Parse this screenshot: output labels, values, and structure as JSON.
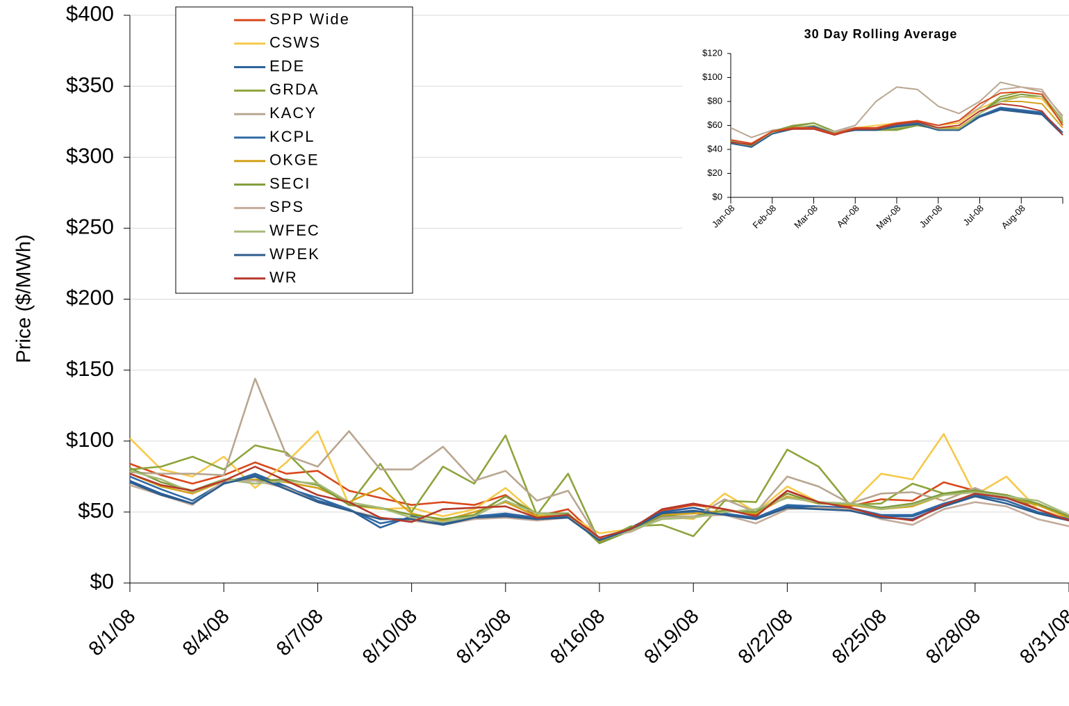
{
  "chart_data": [
    {
      "type": "line",
      "y_label": "Price ($/MWh)",
      "categories": [
        "8/1/08",
        null,
        null,
        "8/4/08",
        null,
        null,
        "8/7/08",
        null,
        null,
        "8/10/08",
        null,
        null,
        "8/13/08",
        null,
        null,
        "8/16/08",
        null,
        null,
        "8/19/08",
        null,
        null,
        "8/22/08",
        null,
        null,
        "8/25/08",
        null,
        null,
        "8/28/08",
        null,
        null,
        "8/31/08"
      ],
      "ylim": [
        0,
        400
      ],
      "yticks": [
        {
          "value": 0,
          "label": "$0"
        },
        {
          "value": 50,
          "label": "$50"
        },
        {
          "value": 100,
          "label": "$100"
        },
        {
          "value": 150,
          "label": "$150"
        },
        {
          "value": 200,
          "label": "$200"
        },
        {
          "value": 250,
          "label": "$250"
        },
        {
          "value": 300,
          "label": "$300"
        },
        {
          "value": 350,
          "label": "$350"
        },
        {
          "value": 400,
          "label": "$400"
        }
      ],
      "grid": true,
      "legend": "upper-left",
      "series": [
        {
          "name": "SPP Wide",
          "color": "#d9481c",
          "values": [
            84,
            76,
            70,
            76,
            85,
            77,
            79,
            65,
            60,
            55,
            57,
            55,
            62,
            47,
            52,
            31,
            38,
            51,
            55,
            52,
            48,
            65,
            57,
            54,
            59,
            58,
            71,
            65,
            62,
            52,
            45
          ]
        },
        {
          "name": "CSWS",
          "color": "#f6c94a",
          "values": [
            102,
            80,
            75,
            89,
            67,
            85,
            107,
            55,
            52,
            53,
            47,
            52,
            67,
            48,
            48,
            35,
            38,
            47,
            45,
            63,
            50,
            68,
            57,
            55,
            77,
            73,
            105,
            62,
            75,
            52,
            45
          ]
        },
        {
          "name": "EDE",
          "color": "#2a5f9c",
          "values": [
            72,
            63,
            56,
            70,
            77,
            68,
            58,
            52,
            39,
            47,
            42,
            46,
            48,
            46,
            46,
            30,
            39,
            50,
            53,
            48,
            45,
            54,
            53,
            52,
            47,
            47,
            55,
            62,
            58,
            50,
            45
          ]
        },
        {
          "name": "GRDA",
          "color": "#8ea43c",
          "values": [
            80,
            82,
            89,
            80,
            97,
            92,
            70,
            55,
            84,
            50,
            82,
            70,
            104,
            48,
            77,
            29,
            40,
            41,
            33,
            58,
            57,
            94,
            82,
            55,
            56,
            70,
            63,
            66,
            60,
            55,
            46
          ]
        },
        {
          "name": "KACY",
          "color": "#b9a690",
          "values": [
            78,
            77,
            77,
            76,
            144,
            90,
            82,
            107,
            80,
            80,
            96,
            72,
            79,
            58,
            65,
            30,
            37,
            48,
            46,
            59,
            50,
            75,
            68,
            56,
            63,
            64,
            58,
            67,
            58,
            50,
            44
          ]
        },
        {
          "name": "KCPL",
          "color": "#2f6aa5",
          "values": [
            75,
            66,
            58,
            71,
            76,
            67,
            60,
            52,
            42,
            46,
            43,
            47,
            49,
            46,
            47,
            30,
            38,
            48,
            50,
            49,
            46,
            55,
            54,
            53,
            48,
            48,
            56,
            62,
            58,
            50,
            45
          ]
        },
        {
          "name": "OKGE",
          "color": "#d4a21a",
          "values": [
            77,
            68,
            63,
            72,
            73,
            71,
            67,
            57,
            67,
            49,
            44,
            50,
            57,
            47,
            48,
            29,
            38,
            48,
            49,
            51,
            49,
            61,
            56,
            55,
            52,
            54,
            62,
            64,
            62,
            55,
            46
          ]
        },
        {
          "name": "SECI",
          "color": "#7f9b3a",
          "values": [
            81,
            71,
            65,
            73,
            72,
            73,
            69,
            55,
            53,
            48,
            45,
            48,
            61,
            49,
            49,
            28,
            37,
            47,
            47,
            51,
            50,
            63,
            56,
            56,
            53,
            56,
            63,
            65,
            62,
            56,
            47
          ]
        },
        {
          "name": "SPS",
          "color": "#c3ab9b",
          "values": [
            69,
            62,
            55,
            72,
            72,
            67,
            57,
            51,
            46,
            44,
            41,
            45,
            46,
            44,
            46,
            32,
            36,
            46,
            47,
            48,
            42,
            52,
            53,
            52,
            45,
            41,
            52,
            57,
            54,
            45,
            40
          ]
        },
        {
          "name": "WFEC",
          "color": "#a9bb7a",
          "values": [
            79,
            73,
            64,
            73,
            70,
            72,
            70,
            57,
            53,
            46,
            43,
            47,
            58,
            49,
            48,
            30,
            37,
            45,
            46,
            50,
            52,
            60,
            57,
            56,
            52,
            55,
            62,
            64,
            61,
            58,
            48
          ]
        },
        {
          "name": "WPEK",
          "color": "#2c5c8c",
          "values": [
            71,
            62,
            56,
            70,
            75,
            66,
            57,
            51,
            45,
            45,
            41,
            46,
            47,
            45,
            46,
            30,
            38,
            49,
            51,
            48,
            45,
            53,
            52,
            51,
            46,
            45,
            54,
            61,
            56,
            49,
            44
          ]
        },
        {
          "name": "WR",
          "color": "#b5392b",
          "values": [
            77,
            69,
            65,
            72,
            82,
            72,
            62,
            57,
            46,
            43,
            52,
            53,
            54,
            46,
            48,
            32,
            38,
            52,
            56,
            52,
            47,
            65,
            57,
            53,
            47,
            44,
            55,
            63,
            60,
            52,
            44
          ]
        }
      ]
    },
    {
      "type": "line",
      "title": "30 Day Rolling Average",
      "categories": [
        "Jan-08",
        null,
        "Feb-08",
        null,
        "Mar-08",
        null,
        "Apr-08",
        null,
        "May-08",
        null,
        "Jun-08",
        null,
        "Jul-08",
        null,
        "Aug-08",
        null,
        null
      ],
      "ylim": [
        0,
        120
      ],
      "yticks": [
        {
          "value": 0,
          "label": "$0"
        },
        {
          "value": 20,
          "label": "$20"
        },
        {
          "value": 40,
          "label": "$40"
        },
        {
          "value": 60,
          "label": "$60"
        },
        {
          "value": 80,
          "label": "$80"
        },
        {
          "value": 100,
          "label": "$100"
        },
        {
          "value": 120,
          "label": "$120"
        }
      ],
      "grid": false,
      "series": [
        {
          "color": "#b9a690",
          "values": [
            58,
            50,
            56,
            58,
            58,
            55,
            60,
            80,
            92,
            90,
            76,
            70,
            80,
            96,
            92,
            88,
            68
          ]
        },
        {
          "color": "#f6c94a",
          "values": [
            47,
            44,
            55,
            58,
            60,
            54,
            58,
            60,
            62,
            64,
            60,
            62,
            74,
            82,
            84,
            82,
            62
          ]
        },
        {
          "color": "#2a5f9c",
          "values": [
            46,
            42,
            54,
            57,
            59,
            53,
            57,
            57,
            60,
            62,
            57,
            57,
            68,
            74,
            72,
            70,
            54
          ]
        },
        {
          "color": "#8ea43c",
          "values": [
            48,
            43,
            55,
            60,
            62,
            55,
            57,
            56,
            56,
            60,
            57,
            56,
            70,
            84,
            88,
            86,
            64
          ]
        },
        {
          "color": "#2f6aa5",
          "values": [
            46,
            42,
            54,
            57,
            59,
            53,
            57,
            57,
            60,
            62,
            57,
            57,
            68,
            75,
            73,
            71,
            54
          ]
        },
        {
          "color": "#d4a21a",
          "values": [
            47,
            44,
            55,
            58,
            60,
            54,
            57,
            58,
            61,
            63,
            58,
            58,
            70,
            80,
            80,
            78,
            58
          ]
        },
        {
          "color": "#7f9b3a",
          "values": [
            47,
            43,
            55,
            59,
            62,
            55,
            56,
            56,
            57,
            60,
            57,
            56,
            70,
            82,
            86,
            84,
            62
          ]
        },
        {
          "color": "#c3ab9b",
          "values": [
            48,
            44,
            55,
            58,
            59,
            55,
            58,
            58,
            61,
            63,
            60,
            64,
            75,
            90,
            92,
            90,
            66
          ]
        },
        {
          "color": "#a9bb7a",
          "values": [
            46,
            42,
            54,
            58,
            60,
            54,
            56,
            57,
            58,
            61,
            57,
            57,
            70,
            80,
            84,
            84,
            63
          ]
        },
        {
          "color": "#2c5c8c",
          "values": [
            45,
            42,
            53,
            57,
            59,
            53,
            56,
            56,
            59,
            61,
            56,
            56,
            67,
            73,
            71,
            69,
            52
          ]
        },
        {
          "color": "#b5392b",
          "values": [
            46,
            44,
            55,
            57,
            57,
            52,
            57,
            57,
            61,
            63,
            58,
            60,
            72,
            78,
            76,
            72,
            52
          ]
        },
        {
          "color": "#d9481c",
          "values": [
            48,
            45,
            55,
            58,
            58,
            53,
            58,
            58,
            62,
            64,
            60,
            64,
            78,
            87,
            88,
            86,
            60
          ]
        }
      ]
    }
  ]
}
